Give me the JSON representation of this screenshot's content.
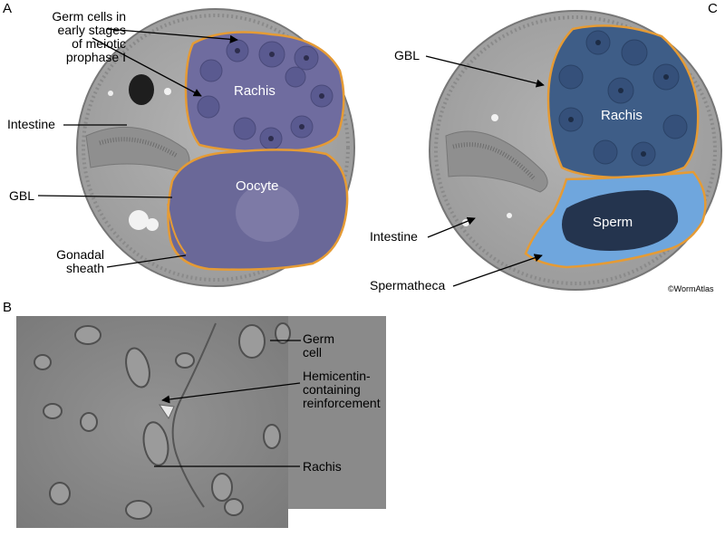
{
  "panels": {
    "a": {
      "letter": "A",
      "labels": {
        "germ_cells": [
          "Germ cells in",
          "early stages",
          "of meiotic",
          "prophase I"
        ],
        "rachis": "Rachis",
        "intestine": "Intestine",
        "oocyte": "Oocyte",
        "gbl": "GBL",
        "gonadal_sheath": [
          "Gonadal",
          "sheath"
        ]
      }
    },
    "b": {
      "letter": "B",
      "labels": {
        "germ_cell": [
          "Germ",
          "cell"
        ],
        "hemicentin": [
          "Hemicentin-",
          "containing",
          "reinforcement"
        ],
        "rachis": "Rachis"
      }
    },
    "c": {
      "letter": "C",
      "labels": {
        "gbl": "GBL",
        "rachis": "Rachis",
        "sperm": "Sperm",
        "intestine": "Intestine",
        "spermatheca": "Spermatheca"
      },
      "copyright": "©WormAtlas"
    }
  },
  "colors": {
    "cross_section_fill": "#a9a9a9",
    "gonad_purple": "#6e6c9e",
    "rachis_blue": "#3e5d87",
    "sperm_light_blue": "#6fa6dd",
    "basal_lamina_orange": "#e5a03a",
    "em_background": "#8a8a8a"
  }
}
